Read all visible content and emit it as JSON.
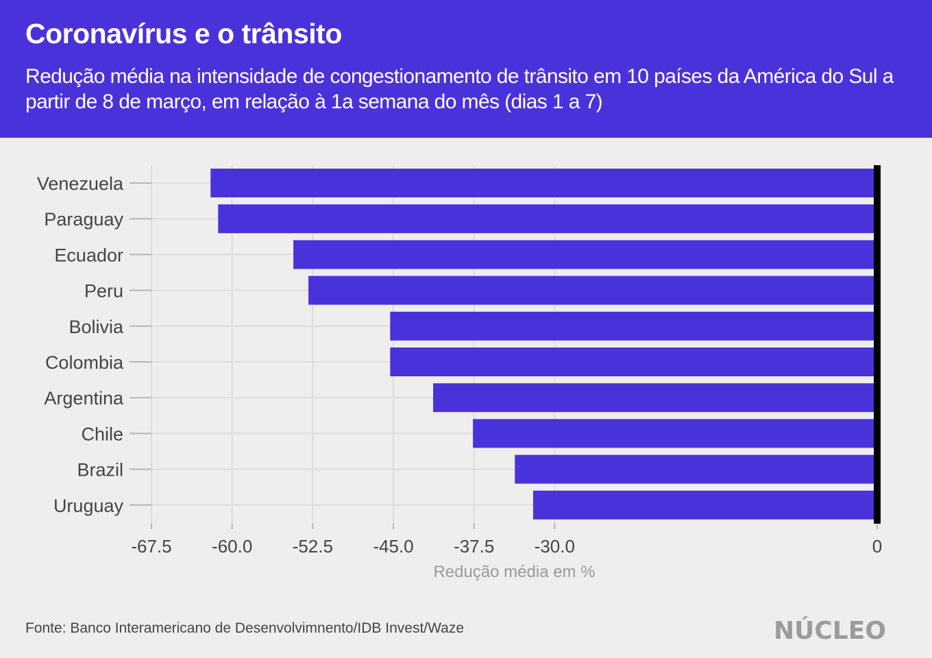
{
  "header": {
    "title": "Coronavírus e o trânsito",
    "subtitle": "Redução média na intensidade de congestionamento de trânsito em 10 países da América do Sul a partir de 8 de março, em relação à 1a semana do mês (dias 1 a 7)"
  },
  "colors": {
    "brand": "#4a32db",
    "bar": "#4a32db",
    "background": "#eeeeee",
    "zero_line": "#000000",
    "grid": "#dcdcdc",
    "tick": "#b5b5b5",
    "text": "#444444",
    "axis_title": "#9a9a9a",
    "logo": "#9b9b9b"
  },
  "chart_data": {
    "type": "bar",
    "orientation": "horizontal",
    "title": "Coronavírus e o trânsito",
    "categories": [
      "Venezuela",
      "Paraguay",
      "Ecuador",
      "Peru",
      "Bolivia",
      "Colombia",
      "Argentina",
      "Chile",
      "Brazil",
      "Uruguay"
    ],
    "values": [
      -62.0,
      -61.3,
      -54.3,
      -52.9,
      -45.3,
      -45.3,
      -41.3,
      -37.6,
      -33.7,
      -32.0
    ],
    "xlabel": "Redução média em %",
    "ylabel": "",
    "xlim": [
      -67.5,
      0
    ],
    "xticks": [
      -67.5,
      -60.0,
      -52.5,
      -45.0,
      -37.5,
      -30.0,
      0
    ],
    "xtick_labels": [
      "-67.5",
      "-60.0",
      "-52.5",
      "-45.0",
      "-37.5",
      "-30.0",
      "0"
    ],
    "grid": true,
    "legend": "none"
  },
  "footer": {
    "source": "Fonte: Banco Interamericano de Desenvolvimnento/IDB Invest/Waze",
    "logo": "NÚCLEO"
  }
}
